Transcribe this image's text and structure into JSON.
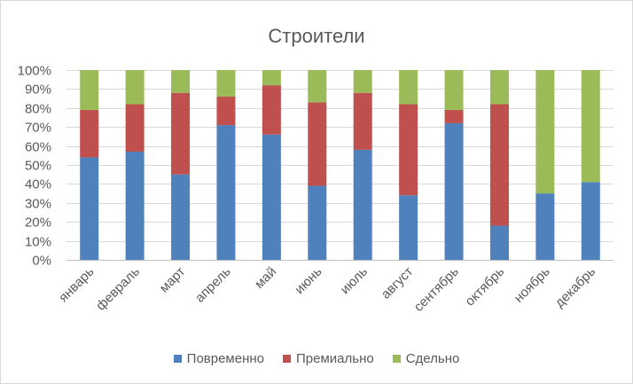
{
  "chart_data": {
    "type": "bar",
    "stacking": "percent",
    "title": "Строители",
    "categories": [
      "январь",
      "февраль",
      "март",
      "апрель",
      "май",
      "июнь",
      "июль",
      "август",
      "сентябрь",
      "октябрь",
      "ноябрь",
      "декабрь"
    ],
    "series": [
      {
        "name": "Повременно",
        "color": "#4F81BD",
        "values": [
          54,
          57,
          45,
          71,
          66,
          39,
          58,
          34,
          72,
          18,
          35,
          41
        ]
      },
      {
        "name": "Премиально",
        "color": "#C0504D",
        "values": [
          25,
          25,
          43,
          15,
          26,
          44,
          30,
          48,
          7,
          64,
          0,
          0
        ]
      },
      {
        "name": "Сдельно",
        "color": "#9BBB59",
        "values": [
          21,
          18,
          12,
          14,
          8,
          17,
          12,
          18,
          21,
          18,
          65,
          59
        ]
      }
    ],
    "ylim": [
      0,
      100
    ],
    "ytick_labels": [
      "0%",
      "10%",
      "20%",
      "30%",
      "40%",
      "50%",
      "60%",
      "70%",
      "80%",
      "90%",
      "100%"
    ],
    "grid": true,
    "legend_position": "bottom"
  }
}
